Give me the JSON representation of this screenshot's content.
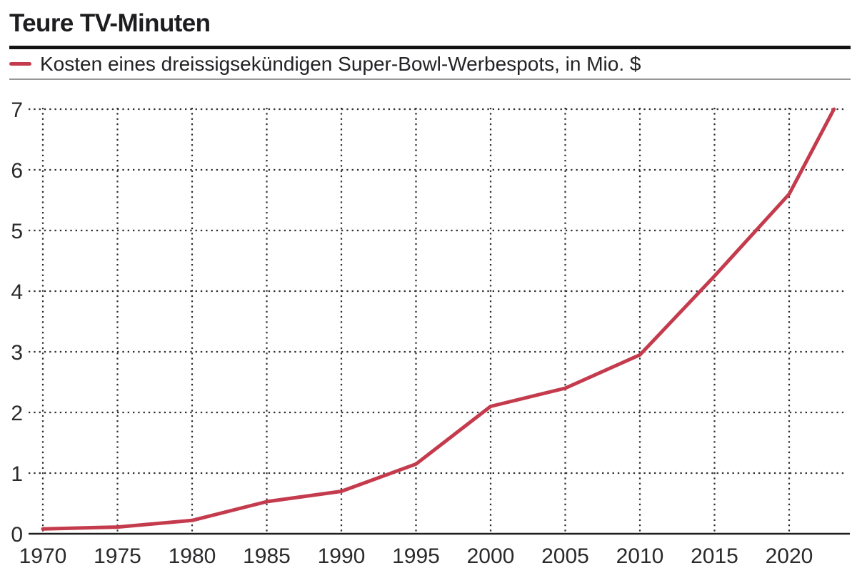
{
  "header": {
    "title": "Teure TV-Minuten",
    "legend": {
      "label": "Kosten eines dreissigsekündigen Super-Bowl-Werbespots, in Mio. $",
      "swatch_color": "#c43b4d"
    }
  },
  "chart_data": {
    "type": "line",
    "title": "Teure TV-Minuten",
    "series": [
      {
        "name": "Kosten eines dreissigsekündigen Super-Bowl-Werbespots, in Mio. $",
        "x": [
          1970,
          1975,
          1980,
          1985,
          1990,
          1995,
          2000,
          2005,
          2010,
          2015,
          2020,
          2023
        ],
        "values": [
          0.08,
          0.11,
          0.22,
          0.53,
          0.7,
          1.15,
          2.1,
          2.4,
          2.95,
          4.25,
          5.6,
          7.0
        ]
      }
    ],
    "x_ticks": [
      1970,
      1975,
      1980,
      1985,
      1990,
      1995,
      2000,
      2005,
      2010,
      2015,
      2020
    ],
    "y_ticks": [
      0,
      1,
      2,
      3,
      4,
      5,
      6,
      7
    ],
    "xlim": [
      1970,
      2023
    ],
    "ylim": [
      0,
      7
    ],
    "xlabel": "",
    "ylabel": "",
    "grid": "dotted",
    "legend_position": "top",
    "line_color": "#c43b4d",
    "grid_color": "#2d2d2d",
    "axis_color": "#1e1e1e",
    "label_color": "#2a2a2c"
  }
}
